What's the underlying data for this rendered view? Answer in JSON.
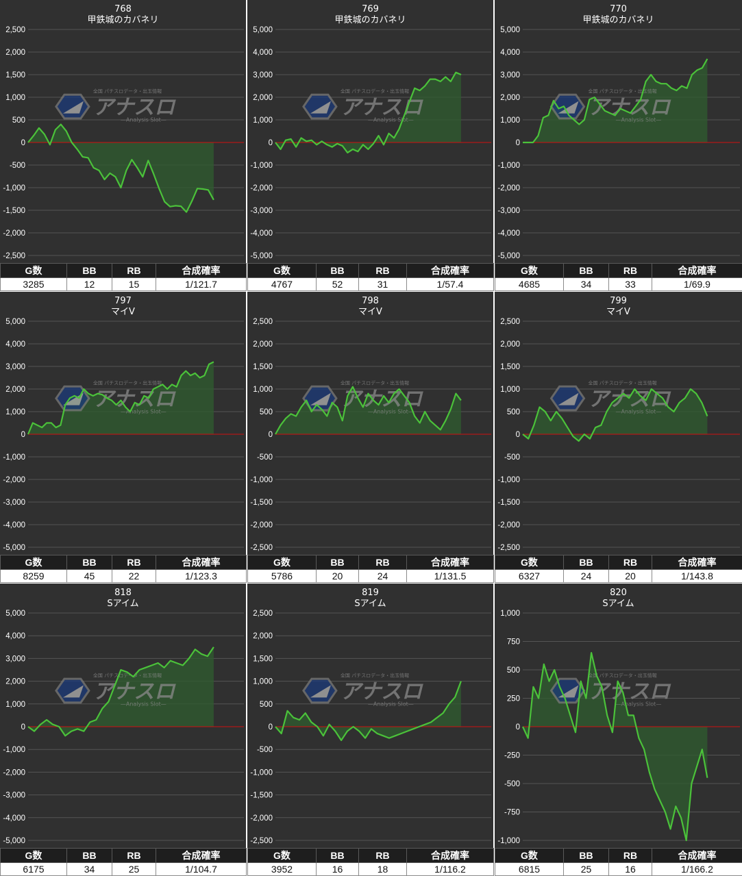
{
  "headers": {
    "g": "G数",
    "bb": "BB",
    "rb": "RB",
    "rate": "合成確率"
  },
  "watermark": {
    "title": "アナスロ",
    "subtitle": "—Analysis Slot—",
    "tagline": "全国 パチスロデータ・出玉情報"
  },
  "colors": {
    "line": "#4bc23a",
    "fill": "#2f5a2f",
    "zero": "#d01010",
    "grid": "#555555",
    "bg": "#303030"
  },
  "chart_data": [
    {
      "type": "area",
      "number": "768",
      "title": "甲鉄城のカバネリ",
      "ylim": [
        -2500,
        2500
      ],
      "step": 500,
      "y": [
        0,
        150,
        320,
        180,
        -50,
        280,
        400,
        250,
        0,
        -150,
        -320,
        -340,
        -560,
        -620,
        -820,
        -680,
        -760,
        -1000,
        -620,
        -380,
        -560,
        -760,
        -400,
        -700,
        -1020,
        -1310,
        -1420,
        -1400,
        -1410,
        -1540,
        -1300,
        -1020,
        -1030,
        -1050,
        -1270
      ],
      "stats": {
        "g": "3285",
        "bb": "12",
        "rb": "15",
        "rate": "1/121.7"
      }
    },
    {
      "type": "area",
      "number": "769",
      "title": "甲鉄城のカバネリ",
      "ylim": [
        -5000,
        5000
      ],
      "step": 1000,
      "y": [
        0,
        -300,
        100,
        150,
        -200,
        200,
        50,
        100,
        -100,
        50,
        -100,
        -200,
        -50,
        -150,
        -450,
        -300,
        -400,
        -100,
        -300,
        -50,
        300,
        -100,
        400,
        200,
        600,
        1200,
        1800,
        2400,
        2300,
        2500,
        2800,
        2800,
        2700,
        2900,
        2700,
        3100,
        3000
      ],
      "stats": {
        "g": "4767",
        "bb": "52",
        "rb": "31",
        "rate": "1/57.4"
      }
    },
    {
      "type": "area",
      "number": "770",
      "title": "甲鉄城のカバネリ",
      "ylim": [
        -5000,
        5000
      ],
      "step": 1000,
      "y": [
        0,
        0,
        0,
        300,
        1100,
        1200,
        1850,
        1500,
        1600,
        1200,
        1000,
        800,
        1000,
        1900,
        2000,
        1700,
        1400,
        1300,
        1200,
        1500,
        1400,
        1300,
        1600,
        1900,
        2700,
        3000,
        2700,
        2600,
        2600,
        2400,
        2300,
        2500,
        2400,
        3000,
        3200,
        3300,
        3700
      ],
      "stats": {
        "g": "4685",
        "bb": "34",
        "rb": "33",
        "rate": "1/69.9"
      }
    },
    {
      "type": "area",
      "number": "797",
      "title": "マイV",
      "ylim": [
        -5000,
        5000
      ],
      "step": 1000,
      "y": [
        0,
        500,
        400,
        300,
        500,
        500,
        300,
        400,
        1300,
        1600,
        1700,
        1600,
        2000,
        1800,
        1700,
        1800,
        1750,
        1600,
        1500,
        1300,
        1500,
        1200,
        1000,
        1400,
        1300,
        1700,
        1600,
        2000,
        2100,
        2200,
        2000,
        2200,
        2100,
        2600,
        2800,
        2600,
        2700,
        2500,
        2600,
        3100,
        3200
      ],
      "stats": {
        "g": "8259",
        "bb": "45",
        "rb": "22",
        "rate": "1/123.3"
      }
    },
    {
      "type": "area",
      "number": "798",
      "title": "マイV",
      "ylim": [
        -2500,
        2500
      ],
      "step": 500,
      "y": [
        0,
        200,
        350,
        450,
        400,
        600,
        750,
        500,
        650,
        550,
        400,
        700,
        600,
        300,
        850,
        1050,
        800,
        600,
        900,
        750,
        650,
        850,
        700,
        900,
        1000,
        850,
        700,
        400,
        250,
        500,
        300,
        200,
        100,
        300,
        550,
        900,
        750
      ],
      "stats": {
        "g": "5786",
        "bb": "20",
        "rb": "24",
        "rate": "1/131.5"
      }
    },
    {
      "type": "area",
      "number": "799",
      "title": "マイV",
      "ylim": [
        -2500,
        2500
      ],
      "step": 500,
      "y": [
        0,
        -100,
        200,
        600,
        500,
        300,
        500,
        350,
        150,
        -50,
        -150,
        0,
        -100,
        150,
        200,
        500,
        700,
        800,
        900,
        800,
        1000,
        850,
        750,
        1000,
        900,
        800,
        600,
        500,
        700,
        800,
        1000,
        900,
        700,
        400
      ],
      "stats": {
        "g": "6327",
        "bb": "24",
        "rb": "20",
        "rate": "1/143.8"
      }
    },
    {
      "type": "area",
      "number": "818",
      "title": "Sアイム",
      "ylim": [
        -5000,
        5000
      ],
      "step": 1000,
      "y": [
        0,
        -200,
        100,
        300,
        100,
        0,
        -400,
        -200,
        -100,
        -200,
        200,
        300,
        800,
        1100,
        1800,
        2500,
        2400,
        2200,
        2500,
        2600,
        2700,
        2800,
        2600,
        2900,
        2800,
        2700,
        3000,
        3400,
        3200,
        3100,
        3500
      ],
      "stats": {
        "g": "6175",
        "bb": "34",
        "rb": "25",
        "rate": "1/104.7"
      }
    },
    {
      "type": "area",
      "number": "819",
      "title": "Sアイム",
      "ylim": [
        -2500,
        2500
      ],
      "step": 500,
      "y": [
        0,
        -150,
        350,
        200,
        150,
        300,
        100,
        0,
        -200,
        50,
        -100,
        -300,
        -100,
        0,
        -100,
        -250,
        -50,
        -150,
        -200,
        -250,
        -200,
        -150,
        -100,
        -50,
        0,
        50,
        100,
        200,
        300,
        500,
        650,
        1000
      ],
      "stats": {
        "g": "3952",
        "bb": "16",
        "rb": "18",
        "rate": "1/116.2"
      }
    },
    {
      "type": "area",
      "number": "820",
      "title": "Sアイム",
      "ylim": [
        -1000,
        1000
      ],
      "step": 250,
      "y": [
        0,
        -100,
        350,
        250,
        550,
        400,
        500,
        350,
        250,
        100,
        -50,
        400,
        250,
        650,
        450,
        350,
        100,
        -50,
        400,
        300,
        100,
        100,
        -100,
        -200,
        -400,
        -550,
        -650,
        -750,
        -900,
        -700,
        -800,
        -1000,
        -500,
        -350,
        -200,
        -450
      ],
      "stats": {
        "g": "6815",
        "bb": "25",
        "rb": "16",
        "rate": "1/166.2"
      }
    }
  ]
}
